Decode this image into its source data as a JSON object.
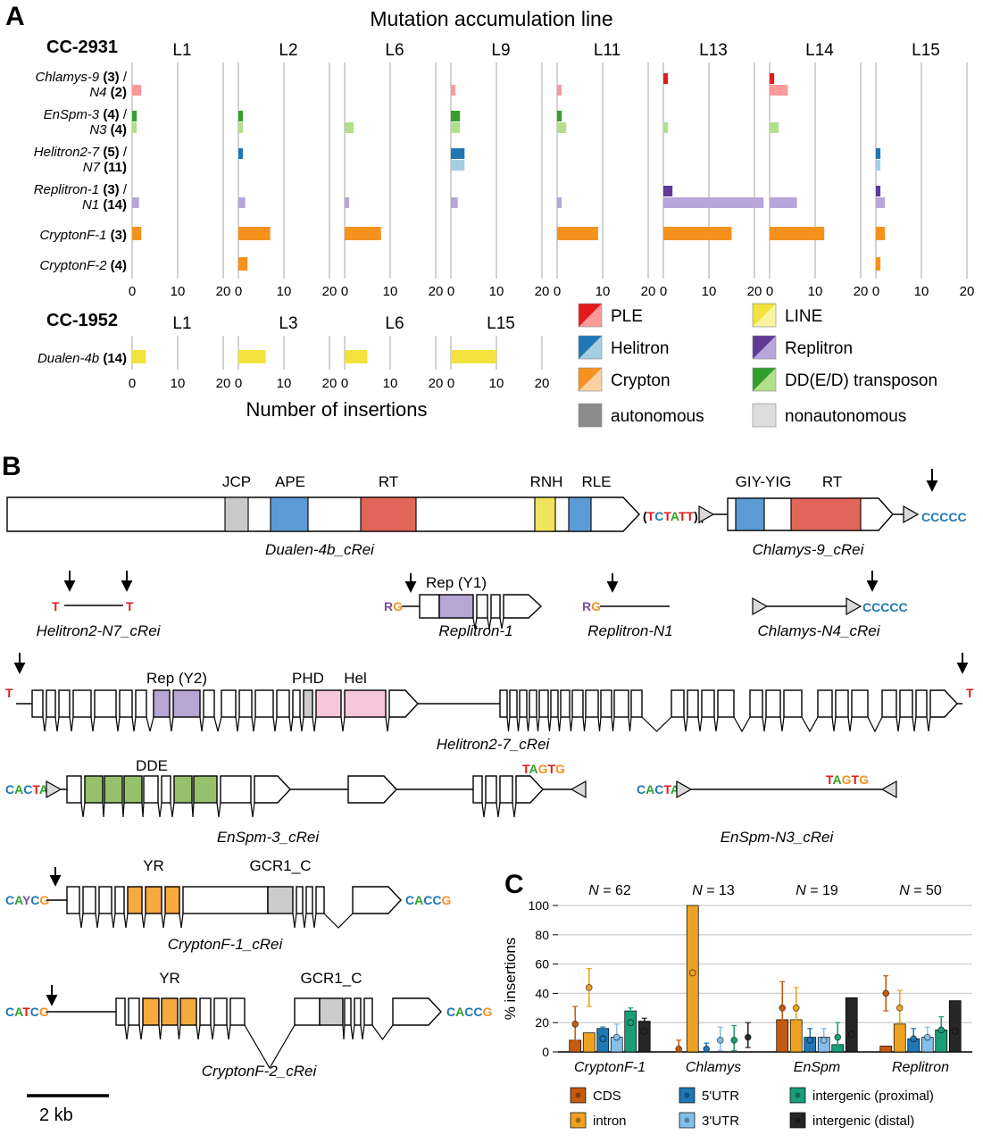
{
  "figure": {
    "panel_a_letter": "A",
    "panel_b_letter": "B",
    "panel_c_letter": "C"
  },
  "panel_a": {
    "title": "Mutation accumulation line",
    "xlabel": "Number of insertions",
    "colors": {
      "PLE": {
        "dark": "#e31a1c",
        "light": "#fb9a99"
      },
      "LINE": {
        "dark": "#f2e23b",
        "light": "#faf3a0"
      },
      "Helitron": {
        "dark": "#1f78b4",
        "light": "#a6cee3"
      },
      "Replitron": {
        "dark": "#5f3a97",
        "light": "#b7a6d9"
      },
      "Crypton": {
        "dark": "#f5921e",
        "light": "#fcd0a1"
      },
      "DD": {
        "dark": "#33a02c",
        "light": "#b2df8a"
      },
      "autonomous": "#8c8c8c",
      "nonautonomous": "#dcdcdc"
    },
    "legend_left": [
      {
        "label": "PLE",
        "family": "PLE"
      },
      {
        "label": "Helitron",
        "family": "Helitron"
      },
      {
        "label": "Crypton",
        "family": "Crypton"
      },
      {
        "label": "autonomous",
        "solid": "#8c8c8c"
      }
    ],
    "legend_right": [
      {
        "label": "LINE",
        "family": "LINE"
      },
      {
        "label": "Replitron",
        "family": "Replitron"
      },
      {
        "label": "DD(E/D) transposon",
        "family": "DD"
      },
      {
        "label": "nonautonomous",
        "solid": "#dcdcdc"
      }
    ]
  },
  "chart_data": [
    {
      "type": "bar",
      "name": "cc2931_insertions_per_MA_line",
      "strain": "CC-2931",
      "orientation": "horizontal",
      "x_ticks": [
        0,
        10,
        20
      ],
      "x_max": 22,
      "lines": [
        "L1",
        "L2",
        "L6",
        "L9",
        "L11",
        "L13",
        "L14",
        "L15"
      ],
      "rows": [
        {
          "name_auto": "Chlamys-9",
          "count_auto": "(3)",
          "name_non": "N4",
          "count_non": "(2)",
          "family": "PLE",
          "auto": [
            0,
            0,
            0,
            0,
            0,
            1,
            1,
            0
          ],
          "non": [
            2,
            0,
            0,
            1,
            1,
            0,
            4,
            0
          ]
        },
        {
          "name_auto": "EnSpm-3",
          "count_auto": "(4)",
          "name_non": "N3",
          "count_non": "(4)",
          "family": "DD",
          "auto": [
            1,
            1,
            0,
            2,
            1,
            0,
            0,
            0
          ],
          "non": [
            1,
            1,
            2,
            2,
            2,
            1,
            2,
            0
          ]
        },
        {
          "name_auto": "Helitron2-7",
          "count_auto": "(5)",
          "name_non": "N7",
          "count_non": "(11)",
          "family": "Helitron",
          "auto": [
            0,
            1,
            0,
            3,
            0,
            0,
            0,
            1
          ],
          "non": [
            0,
            0,
            0,
            3,
            0,
            0,
            0,
            1
          ]
        },
        {
          "name_auto": "Replitron-1",
          "count_auto": "(3)",
          "name_non": "N1",
          "count_non": "(14)",
          "family": "Replitron",
          "auto": [
            0,
            0,
            0,
            0,
            0,
            2,
            0,
            1
          ],
          "non": [
            1.5,
            1.5,
            1,
            1.5,
            1,
            22,
            6,
            2
          ]
        },
        {
          "name_auto": "CryptonF-1",
          "count_auto": "(3)",
          "family": "Crypton",
          "auto": [
            2,
            7,
            8,
            0,
            9,
            15,
            12,
            2
          ],
          "non": [
            0,
            0,
            0,
            0,
            0,
            0,
            0,
            0
          ]
        },
        {
          "name_auto": "CryptonF-2",
          "count_auto": "(4)",
          "family": "Crypton",
          "auto": [
            0,
            2,
            0,
            0,
            0,
            0,
            0,
            1
          ],
          "non": [
            0,
            0,
            0,
            0,
            0,
            0,
            0,
            0
          ]
        }
      ]
    },
    {
      "type": "bar",
      "name": "cc1952_insertions_per_MA_line",
      "strain": "CC-1952",
      "orientation": "horizontal",
      "x_ticks": [
        0,
        10,
        20
      ],
      "x_max": 22,
      "lines": [
        "L1",
        "L3",
        "L6",
        "L15"
      ],
      "rows": [
        {
          "name_auto": "Dualen-4b",
          "count_auto": "(14)",
          "family": "LINE",
          "auto": [
            3,
            6,
            5,
            10
          ],
          "non": [
            0,
            0,
            0,
            0
          ]
        }
      ]
    },
    {
      "type": "bar",
      "name": "insertion_site_context",
      "ylabel": "% insertions",
      "y_ticks": [
        0,
        20,
        40,
        60,
        80,
        100
      ],
      "groups": [
        {
          "label": "CryptonF-1",
          "n_label": "N = 62"
        },
        {
          "label": "Chlamys",
          "n_label": "N = 13"
        },
        {
          "label": "EnSpm",
          "n_label": "N = 19"
        },
        {
          "label": "Replitron",
          "n_label": "N = 50"
        }
      ],
      "series": [
        {
          "name": "CDS",
          "color": "#c55a11",
          "bars": [
            8,
            0,
            22,
            4
          ],
          "dots": [
            19,
            2,
            30,
            40
          ],
          "lo": [
            8,
            0,
            14,
            28
          ],
          "hi": [
            31,
            8,
            48,
            52
          ]
        },
        {
          "name": "intron",
          "color": "#eda321",
          "bars": [
            13,
            100,
            22,
            19
          ],
          "dots": [
            44,
            54,
            30,
            30
          ],
          "lo": [
            31,
            31,
            16,
            20
          ],
          "hi": [
            57,
            77,
            44,
            42
          ]
        },
        {
          "name": "5'UTR",
          "color": "#1f78b4",
          "bars": [
            16,
            0,
            10,
            9
          ],
          "dots": [
            9,
            2,
            8,
            9
          ],
          "lo": [
            3,
            0,
            2,
            4
          ],
          "hi": [
            17,
            6,
            16,
            16
          ]
        },
        {
          "name": "3'UTR",
          "color": "#85bfe9",
          "bars": [
            10,
            0,
            10,
            10
          ],
          "dots": [
            10,
            8,
            8,
            10
          ],
          "lo": [
            4,
            1,
            2,
            4
          ],
          "hi": [
            19,
            17,
            16,
            17
          ]
        },
        {
          "name": "intergenic (proximal)",
          "color": "#1a9e77",
          "bars": [
            28,
            0,
            5,
            15
          ],
          "dots": [
            20,
            8,
            10,
            15
          ],
          "lo": [
            11,
            1,
            3,
            8
          ],
          "hi": [
            30,
            18,
            20,
            24
          ]
        },
        {
          "name": "intergenic (distal)",
          "color": "#262626",
          "bars": [
            21,
            0,
            37,
            35
          ],
          "dots": [
            14,
            10,
            12,
            14
          ],
          "lo": [
            7,
            3,
            5,
            7
          ],
          "hi": [
            23,
            20,
            22,
            22
          ]
        }
      ]
    }
  ],
  "panel_b": {
    "scale_bar": "2 kb",
    "dualen": {
      "name": "Dualen-4b_cRei",
      "domains": [
        "JCP",
        "APE",
        "RT",
        "RNH",
        "RLE"
      ],
      "tail": "(TCTATT)n"
    },
    "chlamys9": {
      "name": "Chlamys-9_cRei",
      "domains": [
        "GIY-YIG",
        "RT"
      ],
      "tail": "CCCCC"
    },
    "helitron_n7": {
      "name": "Helitron2-N7_cRei",
      "ends": "T"
    },
    "replitron1": {
      "name": "Replitron-1",
      "domain": "Rep (Y1)",
      "end5": "RG"
    },
    "replitron_n1": {
      "name": "Replitron-N1",
      "end5": "RG"
    },
    "chlamys_n4": {
      "name": "Chlamys-N4_cRei",
      "tail": "CCCCC"
    },
    "helitron27": {
      "name": "Helitron2-7_cRei",
      "domains": [
        "Rep (Y2)",
        "PHD",
        "Hel"
      ],
      "ends": "T"
    },
    "enspm3": {
      "name": "EnSpm-3_cRei",
      "domain": "DDE",
      "tir5": "CACTA",
      "tir3": "TAGTG"
    },
    "enspm_n3": {
      "name": "EnSpm-N3_cRei",
      "tir5": "CACTA",
      "tir3": "TAGTG"
    },
    "cryptonf1": {
      "name": "CryptonF-1_cRei",
      "domains": [
        "YR",
        "GCR1_C"
      ],
      "end5": "CAYCG",
      "end3": "CACCG"
    },
    "cryptonf2": {
      "name": "CryptonF-2_cRei",
      "domains": [
        "YR",
        "GCR1_C"
      ],
      "end5": "CATCG",
      "end3": "CACCG"
    }
  }
}
